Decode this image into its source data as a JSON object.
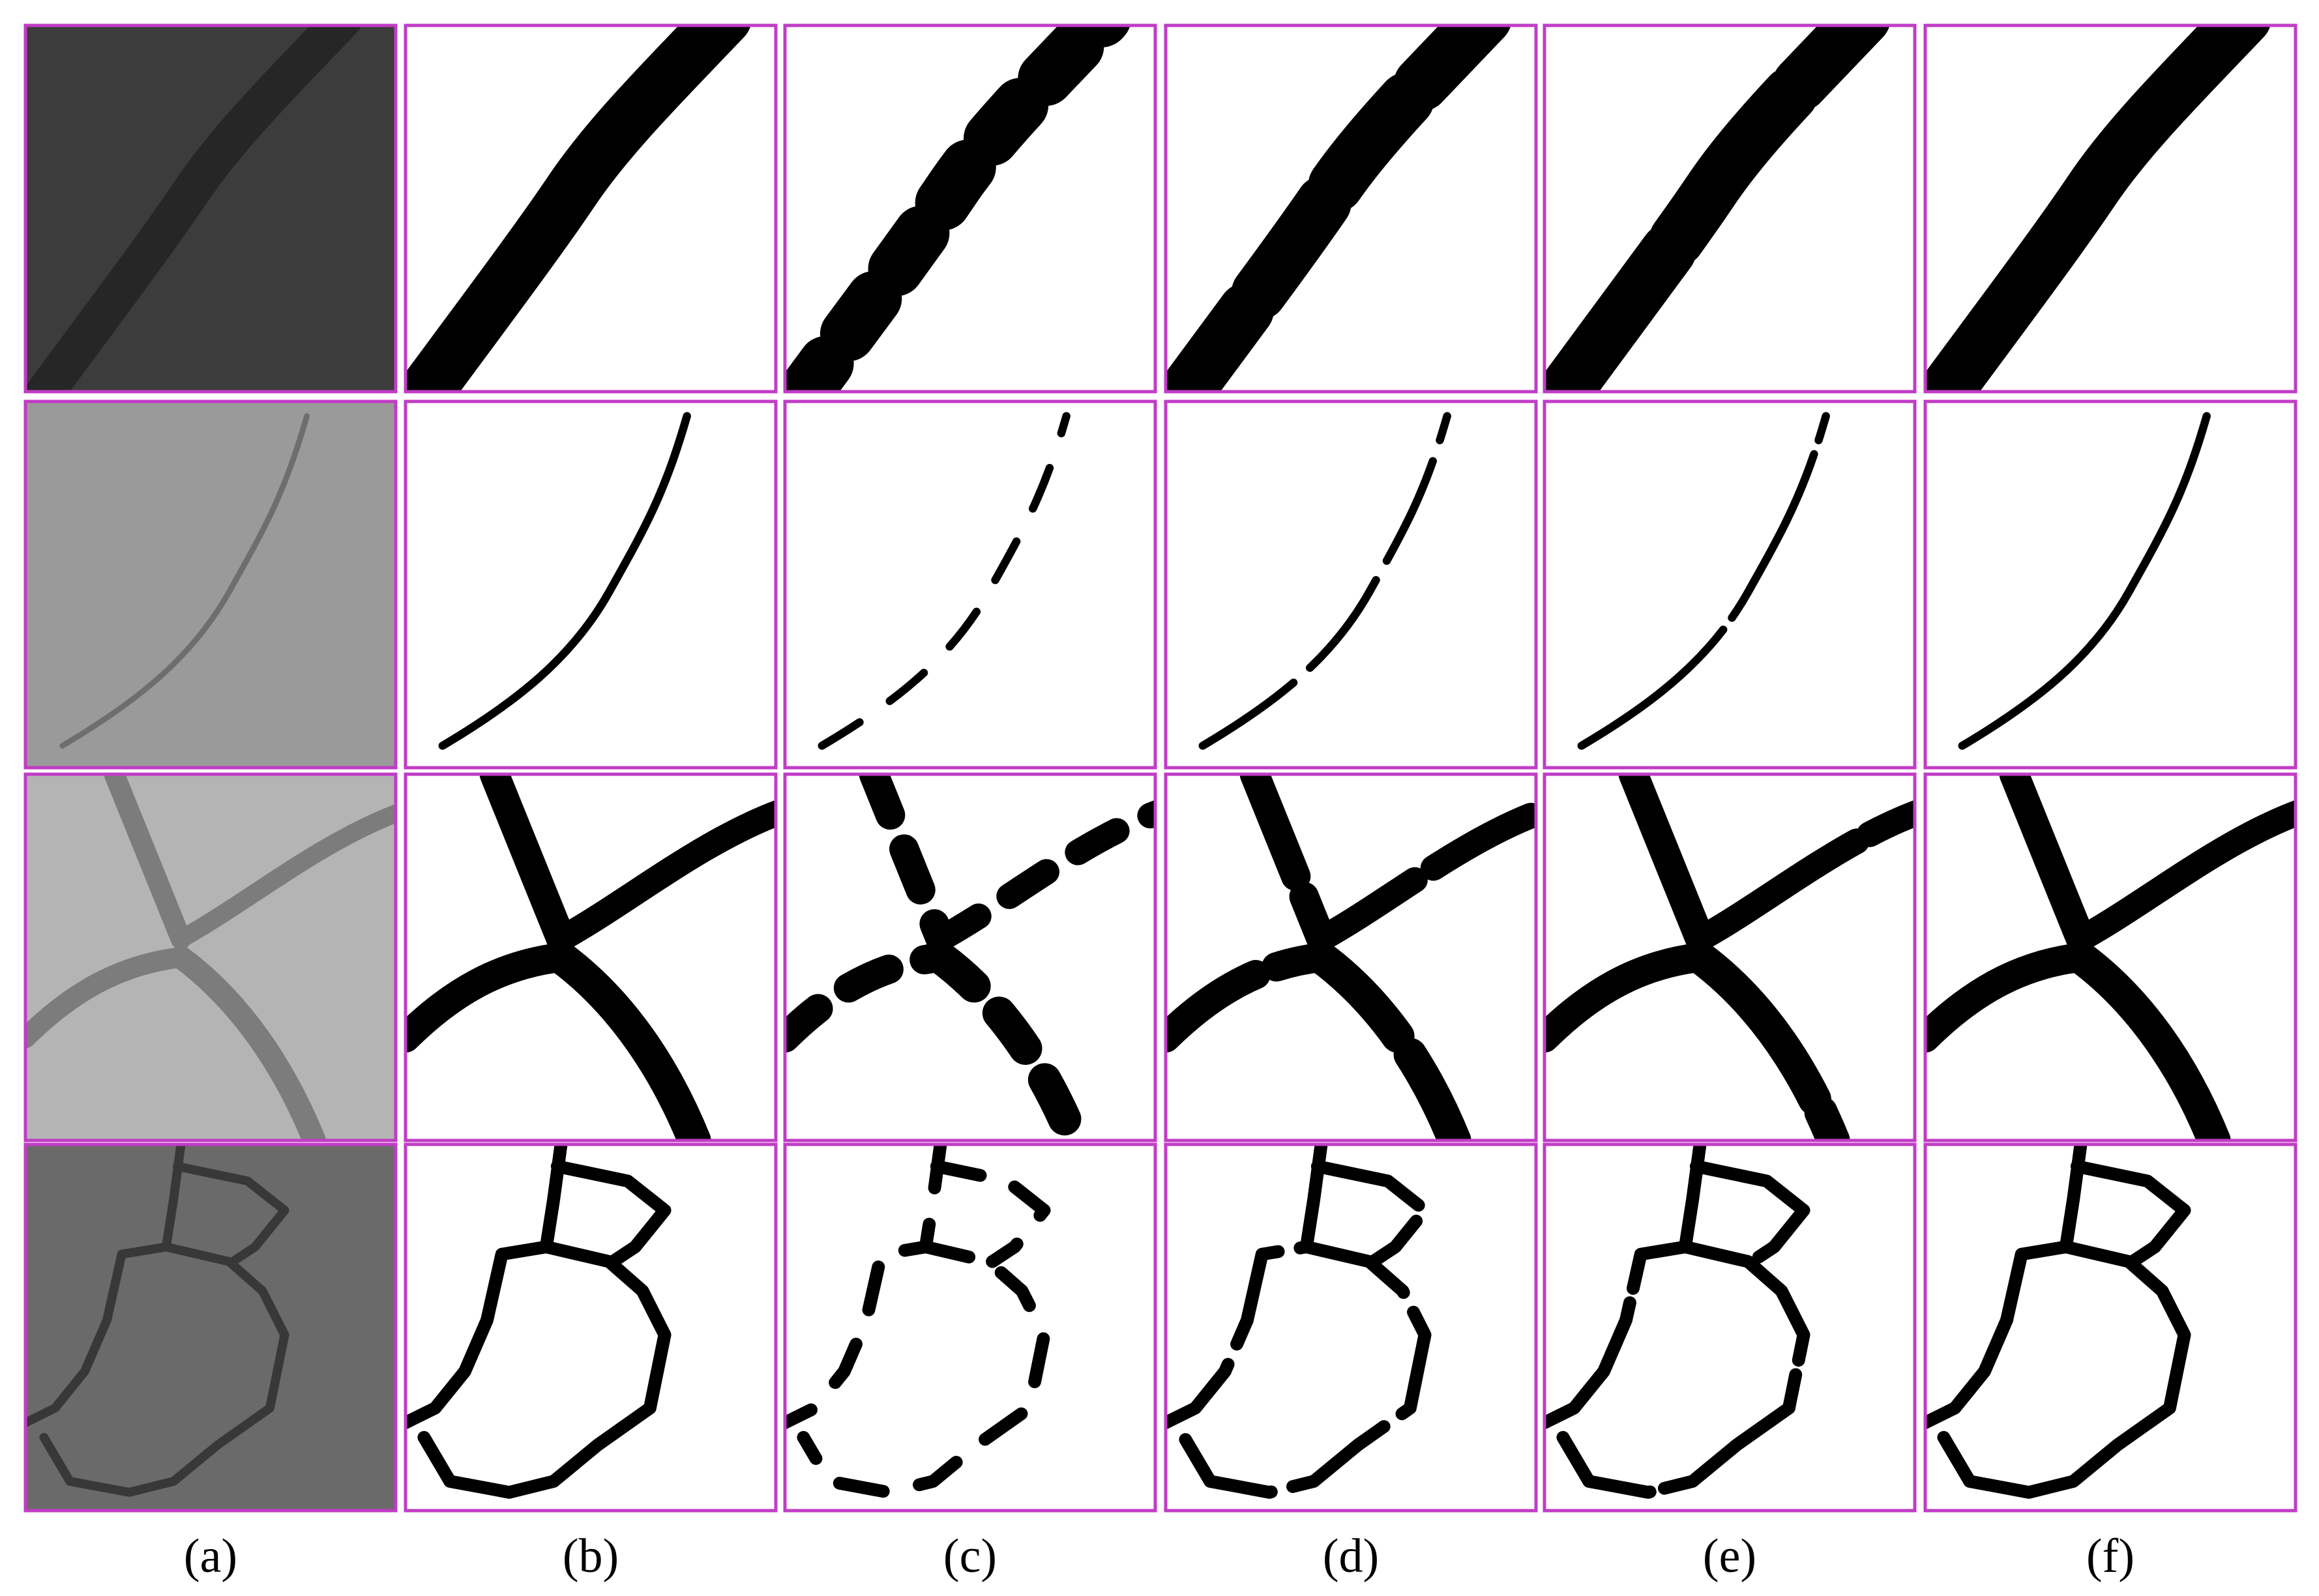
{
  "figure": {
    "column_labels": [
      "(a)",
      "(b)",
      "(c)",
      "(d)",
      "(e)",
      "(f)"
    ]
  }
}
